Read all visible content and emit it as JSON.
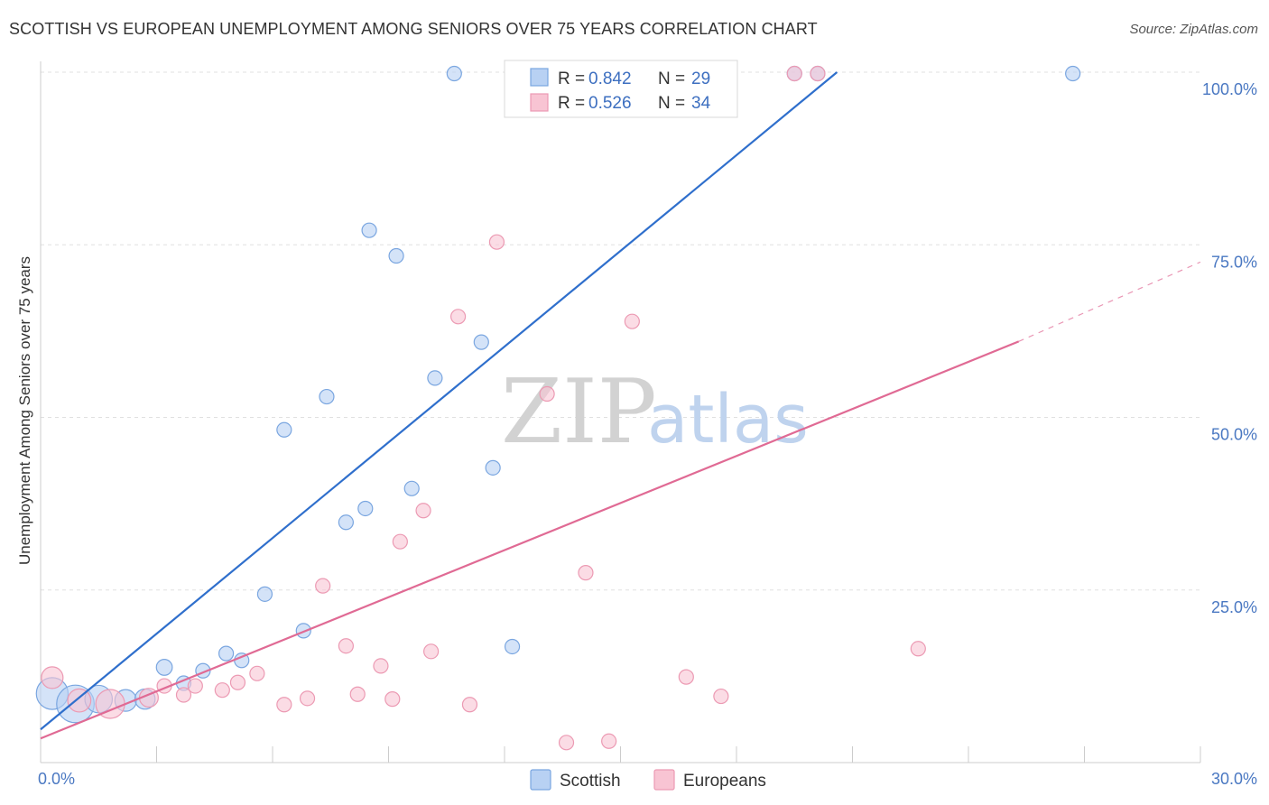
{
  "title": "SCOTTISH VS EUROPEAN UNEMPLOYMENT AMONG SENIORS OVER 75 YEARS CORRELATION CHART",
  "source": "Source: ZipAtlas.com",
  "watermark": {
    "zip": "ZIP",
    "atlas": "atlas"
  },
  "colors": {
    "scottish_fill": "#b8d1f3",
    "scottish_stroke": "#7aa6e0",
    "scottish_line": "#2f6fcc",
    "europeans_fill": "#f8c4d3",
    "europeans_stroke": "#ec9ab3",
    "europeans_line": "#e06a94",
    "axis_text": "#4a78c2",
    "grid": "#e0e0e0"
  },
  "legend": {
    "rows": [
      {
        "r_label": "R = ",
        "r_value": "0.842",
        "n_label": "N = ",
        "n_value": "29"
      },
      {
        "r_label": "R = ",
        "r_value": "0.526",
        "n_label": "N = ",
        "n_value": "34"
      }
    ]
  },
  "bottom_legend": [
    "Scottish",
    "Europeans"
  ],
  "chart_data": {
    "type": "scatter",
    "title": "SCOTTISH VS EUROPEAN UNEMPLOYMENT AMONG SENIORS OVER 75 YEARS CORRELATION CHART",
    "xlabel": "",
    "ylabel": "Unemployment Among Seniors over 75 years",
    "xlim": [
      0,
      30
    ],
    "ylim": [
      0,
      100
    ],
    "x_tick_labels": [
      "0.0%",
      "30.0%"
    ],
    "y_tick_values": [
      25,
      50,
      75,
      100
    ],
    "y_tick_labels": [
      "25.0%",
      "50.0%",
      "75.0%",
      "100.0%"
    ],
    "grid": true,
    "legend_position": "top-center",
    "series": [
      {
        "name": "Scottish",
        "points": [
          {
            "x": 0.3,
            "y": 10.0,
            "s": 2.2
          },
          {
            "x": 0.9,
            "y": 8.5,
            "s": 2.6
          },
          {
            "x": 1.5,
            "y": 9.2,
            "s": 1.9
          },
          {
            "x": 2.2,
            "y": 9.0,
            "s": 1.5
          },
          {
            "x": 2.7,
            "y": 9.2,
            "s": 1.4
          },
          {
            "x": 3.2,
            "y": 13.8,
            "s": 1.1
          },
          {
            "x": 3.7,
            "y": 11.5,
            "s": 1.0
          },
          {
            "x": 4.2,
            "y": 13.3,
            "s": 1.0
          },
          {
            "x": 4.8,
            "y": 15.8,
            "s": 1.0
          },
          {
            "x": 5.2,
            "y": 14.8,
            "s": 1.0
          },
          {
            "x": 5.8,
            "y": 24.4,
            "s": 1.0
          },
          {
            "x": 6.3,
            "y": 48.2,
            "s": 1.0
          },
          {
            "x": 6.8,
            "y": 19.1,
            "s": 1.0
          },
          {
            "x": 7.4,
            "y": 53.0,
            "s": 1.0
          },
          {
            "x": 7.9,
            "y": 34.8,
            "s": 1.0
          },
          {
            "x": 8.4,
            "y": 36.8,
            "s": 1.0
          },
          {
            "x": 8.5,
            "y": 77.1,
            "s": 1.0
          },
          {
            "x": 9.2,
            "y": 73.4,
            "s": 1.0
          },
          {
            "x": 9.6,
            "y": 39.7,
            "s": 1.0
          },
          {
            "x": 10.2,
            "y": 55.7,
            "s": 1.0
          },
          {
            "x": 10.7,
            "y": 99.8,
            "s": 1.0
          },
          {
            "x": 11.4,
            "y": 60.9,
            "s": 1.0
          },
          {
            "x": 11.7,
            "y": 42.7,
            "s": 1.0
          },
          {
            "x": 12.2,
            "y": 16.8,
            "s": 1.0
          },
          {
            "x": 13.9,
            "y": 99.8,
            "s": 1.0
          },
          {
            "x": 19.5,
            "y": 99.8,
            "s": 1.0
          },
          {
            "x": 20.1,
            "y": 99.8,
            "s": 1.0
          },
          {
            "x": 26.7,
            "y": 99.8,
            "s": 1.0
          }
        ],
        "trend": {
          "x0": 0.0,
          "y0": 4.8,
          "x1": 20.6,
          "y1": 100.0,
          "dashed_to": null
        }
      },
      {
        "name": "Europeans",
        "points": [
          {
            "x": 0.3,
            "y": 12.3,
            "s": 1.5
          },
          {
            "x": 1.0,
            "y": 9.0,
            "s": 1.6
          },
          {
            "x": 1.8,
            "y": 8.5,
            "s": 2.0
          },
          {
            "x": 2.8,
            "y": 9.4,
            "s": 1.3
          },
          {
            "x": 3.2,
            "y": 11.1,
            "s": 1.0
          },
          {
            "x": 3.7,
            "y": 9.8,
            "s": 1.0
          },
          {
            "x": 4.0,
            "y": 11.1,
            "s": 1.0
          },
          {
            "x": 4.7,
            "y": 10.5,
            "s": 1.0
          },
          {
            "x": 5.1,
            "y": 11.6,
            "s": 1.0
          },
          {
            "x": 5.6,
            "y": 12.9,
            "s": 1.0
          },
          {
            "x": 6.3,
            "y": 8.4,
            "s": 1.0
          },
          {
            "x": 6.9,
            "y": 9.3,
            "s": 1.0
          },
          {
            "x": 7.3,
            "y": 25.6,
            "s": 1.0
          },
          {
            "x": 7.9,
            "y": 16.9,
            "s": 1.0
          },
          {
            "x": 8.2,
            "y": 9.9,
            "s": 1.0
          },
          {
            "x": 8.8,
            "y": 14.0,
            "s": 1.0
          },
          {
            "x": 9.1,
            "y": 9.2,
            "s": 1.0
          },
          {
            "x": 9.3,
            "y": 32.0,
            "s": 1.0
          },
          {
            "x": 9.9,
            "y": 36.5,
            "s": 1.0
          },
          {
            "x": 10.1,
            "y": 16.1,
            "s": 1.0
          },
          {
            "x": 10.8,
            "y": 64.6,
            "s": 1.0
          },
          {
            "x": 11.1,
            "y": 8.4,
            "s": 1.0
          },
          {
            "x": 11.8,
            "y": 75.4,
            "s": 1.0
          },
          {
            "x": 13.1,
            "y": 53.4,
            "s": 1.0
          },
          {
            "x": 13.6,
            "y": 2.9,
            "s": 1.0
          },
          {
            "x": 14.1,
            "y": 27.5,
            "s": 1.0
          },
          {
            "x": 14.7,
            "y": 3.1,
            "s": 1.0
          },
          {
            "x": 15.3,
            "y": 63.9,
            "s": 1.0
          },
          {
            "x": 16.7,
            "y": 12.4,
            "s": 1.0
          },
          {
            "x": 17.6,
            "y": 9.6,
            "s": 1.0
          },
          {
            "x": 19.5,
            "y": 99.8,
            "s": 1.0
          },
          {
            "x": 20.1,
            "y": 99.8,
            "s": 1.0
          },
          {
            "x": 22.7,
            "y": 16.5,
            "s": 1.0
          }
        ],
        "trend": {
          "x0": 0.0,
          "y0": 3.5,
          "x1": 25.3,
          "y1": 61.0,
          "dashed_to": {
            "x": 30.0,
            "y": 72.5
          }
        }
      }
    ]
  }
}
